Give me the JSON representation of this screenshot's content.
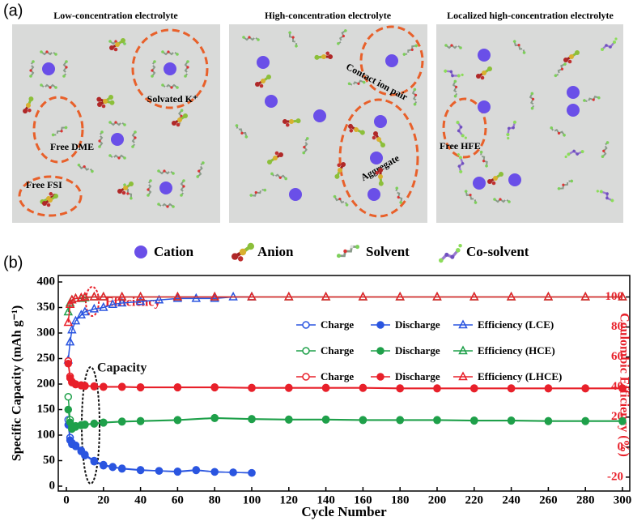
{
  "panel_a": {
    "label": "(a)",
    "titles": [
      "Low-concentration electrolyte",
      "High-concentration electrolyte",
      "Localized high-concentration electrolyte"
    ],
    "annotations": [
      "Solvated K⁺",
      "Free DME",
      "Free FSI",
      "Contact ion pair",
      "Aggregate",
      "Free HFE"
    ],
    "legend": [
      "Cation",
      "Anion",
      "Solvent",
      "Co-solvent"
    ]
  },
  "chart_data": {
    "type": "line",
    "panel_label": "(b)",
    "x_label": "Cycle Number",
    "y_label": "Specific Capacity (mAh g⁻¹)",
    "y2_label": "Coulombic Efficiency (%)",
    "y2_color": "#e8202a",
    "annotations": [
      {
        "text": "Efficiency",
        "color": "#e8202a"
      },
      {
        "text": "Capacity",
        "color": "#111111"
      }
    ],
    "xlim": [
      0,
      300
    ],
    "xticks": [
      0,
      20,
      40,
      60,
      80,
      100,
      120,
      140,
      160,
      180,
      200,
      220,
      240,
      260,
      280,
      300
    ],
    "ylim": [
      0,
      400
    ],
    "yticks": [
      0,
      50,
      100,
      150,
      200,
      250,
      300,
      350,
      400
    ],
    "y2lim": [
      -26,
      110
    ],
    "y2ticks": [
      -20,
      0,
      20,
      40,
      60,
      80,
      100
    ],
    "series": [
      {
        "name": "Charge",
        "color": "#2a55e0",
        "marker": "open",
        "x": [
          1,
          2,
          3,
          5,
          8,
          10,
          15,
          20,
          25,
          30,
          40,
          50,
          60,
          70,
          80,
          90,
          100
        ],
        "values": [
          130,
          95,
          85,
          80,
          70,
          62,
          50,
          42,
          38,
          35,
          32,
          30,
          29,
          32,
          28,
          27,
          26
        ]
      },
      {
        "name": "Discharge",
        "color": "#2a55e0",
        "marker": "filled",
        "x": [
          1,
          2,
          3,
          5,
          8,
          10,
          15,
          20,
          25,
          30,
          40,
          50,
          60,
          70,
          80,
          90,
          100
        ],
        "values": [
          120,
          90,
          82,
          78,
          68,
          60,
          48,
          40,
          37,
          34,
          31,
          30,
          28,
          31,
          28,
          27,
          26
        ]
      },
      {
        "name": "Efficiency (LCE)",
        "color": "#2a55e0",
        "marker": "triangle",
        "axis": "y2",
        "x": [
          1,
          2,
          3,
          5,
          8,
          10,
          15,
          20,
          25,
          30,
          40,
          50,
          60,
          70,
          80,
          90,
          100
        ],
        "values": [
          58,
          70,
          78,
          84,
          88,
          90,
          92,
          93,
          95,
          96,
          97,
          98,
          99,
          99,
          99,
          100,
          100
        ]
      },
      {
        "name": "Charge",
        "color": "#1fa04a",
        "marker": "open",
        "x": [
          1,
          2,
          3,
          5,
          8,
          10,
          15,
          20,
          30,
          40,
          60,
          80,
          100,
          120,
          140,
          160,
          180,
          200,
          220,
          240,
          260,
          280,
          300
        ],
        "values": [
          175,
          130,
          115,
          118,
          120,
          121,
          123,
          125,
          127,
          128,
          130,
          134,
          132,
          131,
          131,
          130,
          130,
          130,
          129,
          129,
          128,
          128,
          128
        ]
      },
      {
        "name": "Discharge",
        "color": "#1fa04a",
        "marker": "filled",
        "x": [
          1,
          2,
          3,
          5,
          8,
          10,
          15,
          20,
          30,
          40,
          60,
          80,
          100,
          120,
          140,
          160,
          180,
          200,
          220,
          240,
          260,
          280,
          300
        ],
        "values": [
          150,
          125,
          112,
          116,
          119,
          120,
          122,
          124,
          126,
          127,
          129,
          133,
          131,
          130,
          130,
          129,
          129,
          129,
          128,
          128,
          127,
          127,
          127
        ]
      },
      {
        "name": "Efficiency (HCE)",
        "color": "#1fa04a",
        "marker": "triangle",
        "axis": "y2",
        "x": [
          1,
          2,
          3,
          5,
          8,
          10,
          15,
          20,
          30,
          40,
          60,
          80,
          100,
          120,
          140,
          160,
          180,
          200,
          220,
          240,
          260,
          280,
          300
        ],
        "values": [
          90,
          96,
          98,
          99,
          99,
          99.5,
          100,
          100,
          100,
          100,
          100,
          100,
          100,
          100,
          100,
          100,
          100,
          100,
          100,
          100,
          100,
          100,
          100
        ]
      },
      {
        "name": "Charge",
        "color": "#e8202a",
        "marker": "open",
        "x": [
          1,
          2,
          3,
          5,
          8,
          10,
          15,
          20,
          30,
          40,
          60,
          80,
          100,
          120,
          140,
          160,
          180,
          200,
          220,
          240,
          260,
          280,
          300
        ],
        "values": [
          245,
          215,
          205,
          200,
          198,
          197,
          196,
          195,
          195,
          194,
          194,
          194,
          193,
          193,
          193,
          193,
          192,
          192,
          192,
          192,
          192,
          192,
          192
        ]
      },
      {
        "name": "Discharge",
        "color": "#e8202a",
        "marker": "filled",
        "x": [
          1,
          2,
          3,
          5,
          8,
          10,
          15,
          20,
          30,
          40,
          60,
          80,
          100,
          120,
          140,
          160,
          180,
          200,
          220,
          240,
          260,
          280,
          300
        ],
        "values": [
          240,
          212,
          203,
          199,
          197,
          196,
          195,
          194,
          194,
          193,
          193,
          193,
          192,
          192,
          192,
          192,
          191,
          191,
          191,
          191,
          191,
          191,
          191
        ]
      },
      {
        "name": "Efficiency (LHCE)",
        "color": "#e8202a",
        "marker": "triangle",
        "axis": "y2",
        "x": [
          1,
          2,
          3,
          5,
          8,
          10,
          15,
          20,
          30,
          40,
          60,
          80,
          100,
          120,
          140,
          160,
          180,
          200,
          220,
          240,
          260,
          280,
          300
        ],
        "values": [
          83,
          95,
          98,
          99,
          99.5,
          100,
          100,
          100,
          100,
          100,
          100,
          100,
          100,
          100,
          100,
          100,
          100,
          100,
          100,
          100,
          100,
          100,
          100
        ]
      }
    ]
  }
}
